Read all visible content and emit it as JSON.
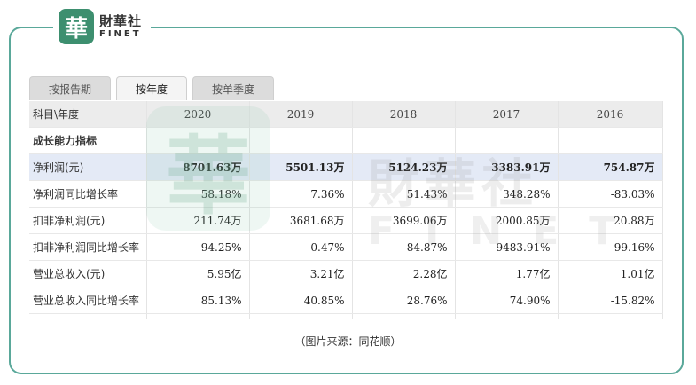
{
  "brand": {
    "seal_char": "華",
    "name_cn": "財華社",
    "name_en": "FINET"
  },
  "watermark": {
    "seal_char": "華",
    "name_cn": "財華社",
    "name_en": "FINET"
  },
  "tabs": [
    {
      "label": "按报告期",
      "active": false
    },
    {
      "label": "按年度",
      "active": true
    },
    {
      "label": "按单季度",
      "active": false
    }
  ],
  "table": {
    "header_label": "科目\\年度",
    "years": [
      "2020",
      "2019",
      "2018",
      "2017",
      "2016"
    ],
    "section_label": "成长能力指标",
    "rows": [
      {
        "label": "净利润(元)",
        "values": [
          "8701.63万",
          "5501.13万",
          "5124.23万",
          "3383.91万",
          "754.87万"
        ]
      },
      {
        "label": "净利润同比增长率",
        "values": [
          "58.18%",
          "7.36%",
          "51.43%",
          "348.28%",
          "-83.03%"
        ]
      },
      {
        "label": "扣非净利润(元)",
        "values": [
          "211.74万",
          "3681.68万",
          "3699.06万",
          "2000.85万",
          "20.88万"
        ]
      },
      {
        "label": "扣非净利润同比增长率",
        "values": [
          "-94.25%",
          "-0.47%",
          "84.87%",
          "9483.91%",
          "-99.16%"
        ]
      },
      {
        "label": "营业总收入(元)",
        "values": [
          "5.95亿",
          "3.21亿",
          "2.28亿",
          "1.77亿",
          "1.01亿"
        ]
      },
      {
        "label": "营业总收入同比增长率",
        "values": [
          "85.13%",
          "40.85%",
          "28.76%",
          "74.90%",
          "-15.82%"
        ]
      }
    ]
  },
  "caption": "（图片来源：同花顺）",
  "colors": {
    "frame_border": "#5aa89a",
    "brand_green": "#3d8f6f",
    "highlight_row": "#e4eaf6",
    "header_row": "#ececec"
  }
}
